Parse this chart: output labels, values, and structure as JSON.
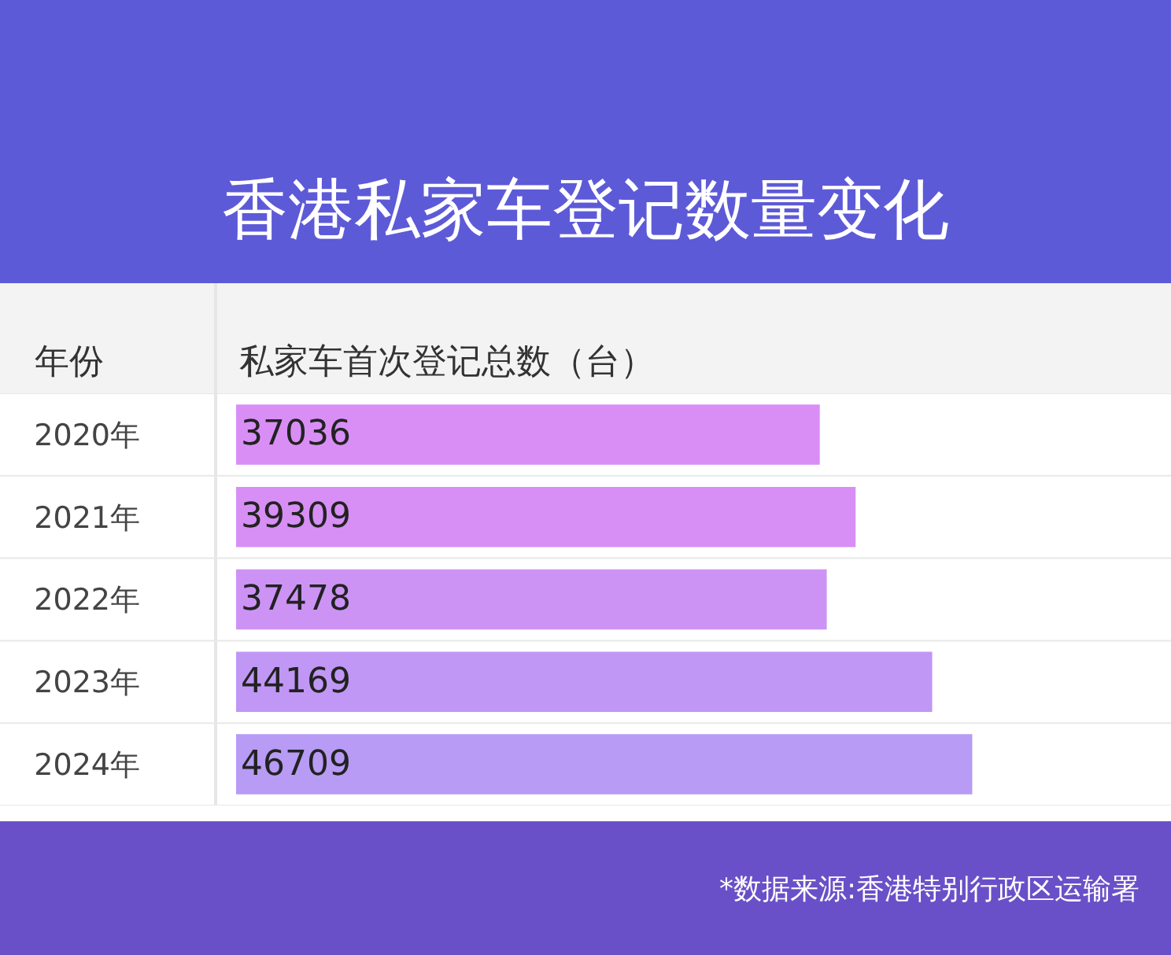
{
  "chart_data": {
    "type": "bar",
    "orientation": "horizontal",
    "title": "香港私家车登记数量变化",
    "ylabel": "年份",
    "xlabel": "私家车首次登记总数（台）",
    "categories": [
      "2020年",
      "2021年",
      "2022年",
      "2023年",
      "2024年"
    ],
    "values": [
      37036,
      39309,
      37478,
      44169,
      46709
    ],
    "colors": [
      "#d98ef6",
      "#d78ff6",
      "#cc93f5",
      "#c097f5",
      "#b79bf5"
    ],
    "data_labels": true,
    "annotations": [
      "*数据来源:香港特别行政区运输署"
    ]
  }
}
